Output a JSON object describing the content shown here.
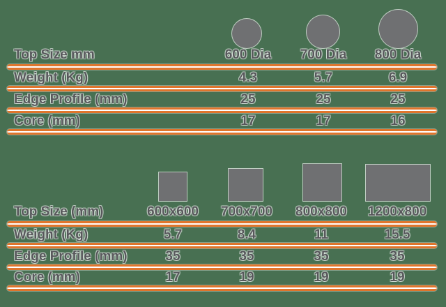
{
  "colors": {
    "background": "#487052",
    "accent_orange": "#E0752C",
    "shape_gray": "#6F7072",
    "text_gray": "#57585B"
  },
  "chart_data": [
    {
      "type": "table",
      "shape": "circle",
      "col_header_label": "Top Size mm",
      "columns": [
        "600 Dia",
        "700 Dia",
        "800 Dia"
      ],
      "rows": [
        {
          "label": "Weight (Kg)",
          "values": [
            "4.3",
            "5.7",
            "6.9"
          ]
        },
        {
          "label": "Edge Profile (mm)",
          "values": [
            "25",
            "25",
            "25"
          ]
        },
        {
          "label": "Core (mm)",
          "values": [
            "17",
            "17",
            "16"
          ]
        }
      ]
    },
    {
      "type": "table",
      "shape": "rectangle",
      "col_header_label": "Top Size (mm)",
      "columns": [
        "600x600",
        "700x700",
        "800x800",
        "1200x800"
      ],
      "rows": [
        {
          "label": "Weight (Kg)",
          "values": [
            "5.7",
            "8.4",
            "11",
            "15.5"
          ]
        },
        {
          "label": "Edge Profile (mm)",
          "values": [
            "35",
            "35",
            "35",
            "35"
          ]
        },
        {
          "label": "Core (mm)",
          "values": [
            "17",
            "19",
            "19",
            "19"
          ]
        }
      ]
    }
  ]
}
